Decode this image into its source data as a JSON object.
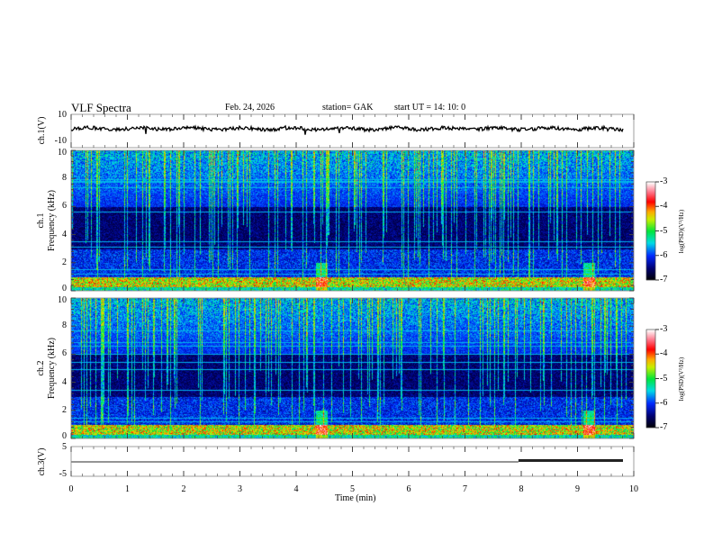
{
  "header": {
    "title": "VLF  Spectra",
    "date": "Feb. 24, 2026",
    "station": "station= GAK",
    "start": "start  UT  =   14: 10: 0"
  },
  "chart_data": [
    {
      "type": "line",
      "name": "ch1-waveform",
      "ylabel": "ch.1(V)",
      "ylim": [
        -10,
        10
      ],
      "yticks": [
        "10",
        "-10"
      ],
      "xlim": [
        0,
        10
      ]
    },
    {
      "type": "heatmap",
      "name": "ch1-spectrogram",
      "ylabel_top": "ch.1",
      "ylabel": "Frequency  (kHz)",
      "ylim": [
        0,
        10
      ],
      "yticks": [
        "0",
        "2",
        "4",
        "6",
        "8",
        "10"
      ],
      "xlim": [
        0,
        10
      ],
      "colorbar": {
        "label": "log(PSD)(V²/Hz)",
        "range": [
          -7,
          -3
        ],
        "ticks": [
          "-3",
          "-4",
          "-5",
          "-6",
          "-7"
        ]
      }
    },
    {
      "type": "heatmap",
      "name": "ch2-spectrogram",
      "ylabel_top": "ch.2",
      "ylabel": "Frequency  (kHz)",
      "ylim": [
        0,
        10
      ],
      "yticks": [
        "0",
        "2",
        "4",
        "6",
        "8",
        "10"
      ],
      "xlim": [
        0,
        10
      ],
      "colorbar": {
        "label": "log(PSD)(V²/Hz)",
        "range": [
          -7,
          -3
        ],
        "ticks": [
          "-3",
          "-4",
          "-5",
          "-6",
          "-7"
        ]
      }
    },
    {
      "type": "line",
      "name": "ch3-waveform",
      "ylabel": "ch.3(V)",
      "ylim": [
        -5,
        5
      ],
      "yticks": [
        "5",
        "-5"
      ],
      "xlim": [
        0,
        10
      ],
      "level": -1.5
    }
  ],
  "xaxis": {
    "label": "Time  (min)",
    "ticks": [
      "0",
      "1",
      "2",
      "3",
      "4",
      "5",
      "6",
      "7",
      "8",
      "9",
      "10"
    ]
  }
}
